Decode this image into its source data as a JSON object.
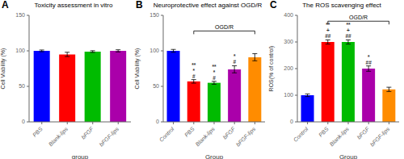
{
  "chart_data": [
    {
      "type": "bar",
      "panel_label": "A",
      "title": "Toxicity assessment in vitro",
      "categories": [
        "PBS",
        "Blank-lips",
        "bFGF",
        "bFGF-lips"
      ],
      "values": [
        100,
        95,
        99,
        100
      ],
      "errors": [
        1.2,
        3.0,
        1.2,
        1.5
      ],
      "colors": [
        "#0000FF",
        "#FF0000",
        "#00BB00",
        "#AA00AA"
      ],
      "xlabel": "group",
      "ylabel": "Cell Viability (%)",
      "ylim": [
        0,
        150
      ],
      "yticks": [
        0,
        50,
        100,
        150
      ]
    },
    {
      "type": "bar",
      "panel_label": "B",
      "title": "Neuroprotective effect against OGD/R",
      "categories": [
        "Control",
        "PBS",
        "Blank-lips",
        "bFGF",
        "bFGF-lips"
      ],
      "values": [
        100,
        57,
        55,
        74,
        91
      ],
      "errors": [
        2.0,
        2.5,
        2.0,
        5.0,
        5.0
      ],
      "colors": [
        "#0000FF",
        "#FF0000",
        "#00BB00",
        "#AA00AA",
        "#FF8C00"
      ],
      "xlabel": "Group",
      "ylabel": "Cell Viability (%)",
      "ylim": [
        0,
        150
      ],
      "yticks": [
        0,
        50,
        100,
        150
      ],
      "bracket": {
        "label": "OGD/R",
        "from": "PBS",
        "to": "bFGF-lips",
        "y": 128
      },
      "annotations": [
        {
          "x": "PBS",
          "y": 59,
          "color": "#333333",
          "texts": [
            "#",
            "*",
            "**"
          ]
        },
        {
          "x": "Blank-lips",
          "y": 57,
          "color": "#333333",
          "texts": [
            "#",
            "*",
            "**"
          ]
        },
        {
          "x": "bFGF",
          "y": 79,
          "color": "#333333",
          "texts": [
            "#",
            "*"
          ]
        }
      ]
    },
    {
      "type": "bar",
      "panel_label": "C",
      "title": "The ROS scavenging effect",
      "categories": [
        "Control",
        "PBS",
        "Blank-lips",
        "bFGF",
        "bFGF-lips"
      ],
      "values": [
        100,
        300,
        300,
        200,
        122
      ],
      "errors": [
        5,
        8,
        8,
        10,
        8
      ],
      "colors": [
        "#0000FF",
        "#FF0000",
        "#00BB00",
        "#AA00AA",
        "#FF8C00"
      ],
      "xlabel": "Group",
      "ylabel": "ROS(% of control)",
      "ylim": [
        0,
        400
      ],
      "yticks": [
        0,
        100,
        200,
        300,
        400
      ],
      "bracket": {
        "label": "OGD/R",
        "from": "PBS",
        "to": "bFGF-lips",
        "y": 378
      },
      "annotations": [
        {
          "x": "PBS",
          "y": 308,
          "color": "#333333",
          "texts": [
            "##",
            "+",
            "**"
          ]
        },
        {
          "x": "Blank-lips",
          "y": 308,
          "color": "#333333",
          "texts": [
            "##",
            "+",
            "**"
          ]
        },
        {
          "x": "bFGF",
          "y": 210,
          "color": "#333333",
          "texts": [
            "##",
            "*"
          ]
        }
      ]
    }
  ]
}
